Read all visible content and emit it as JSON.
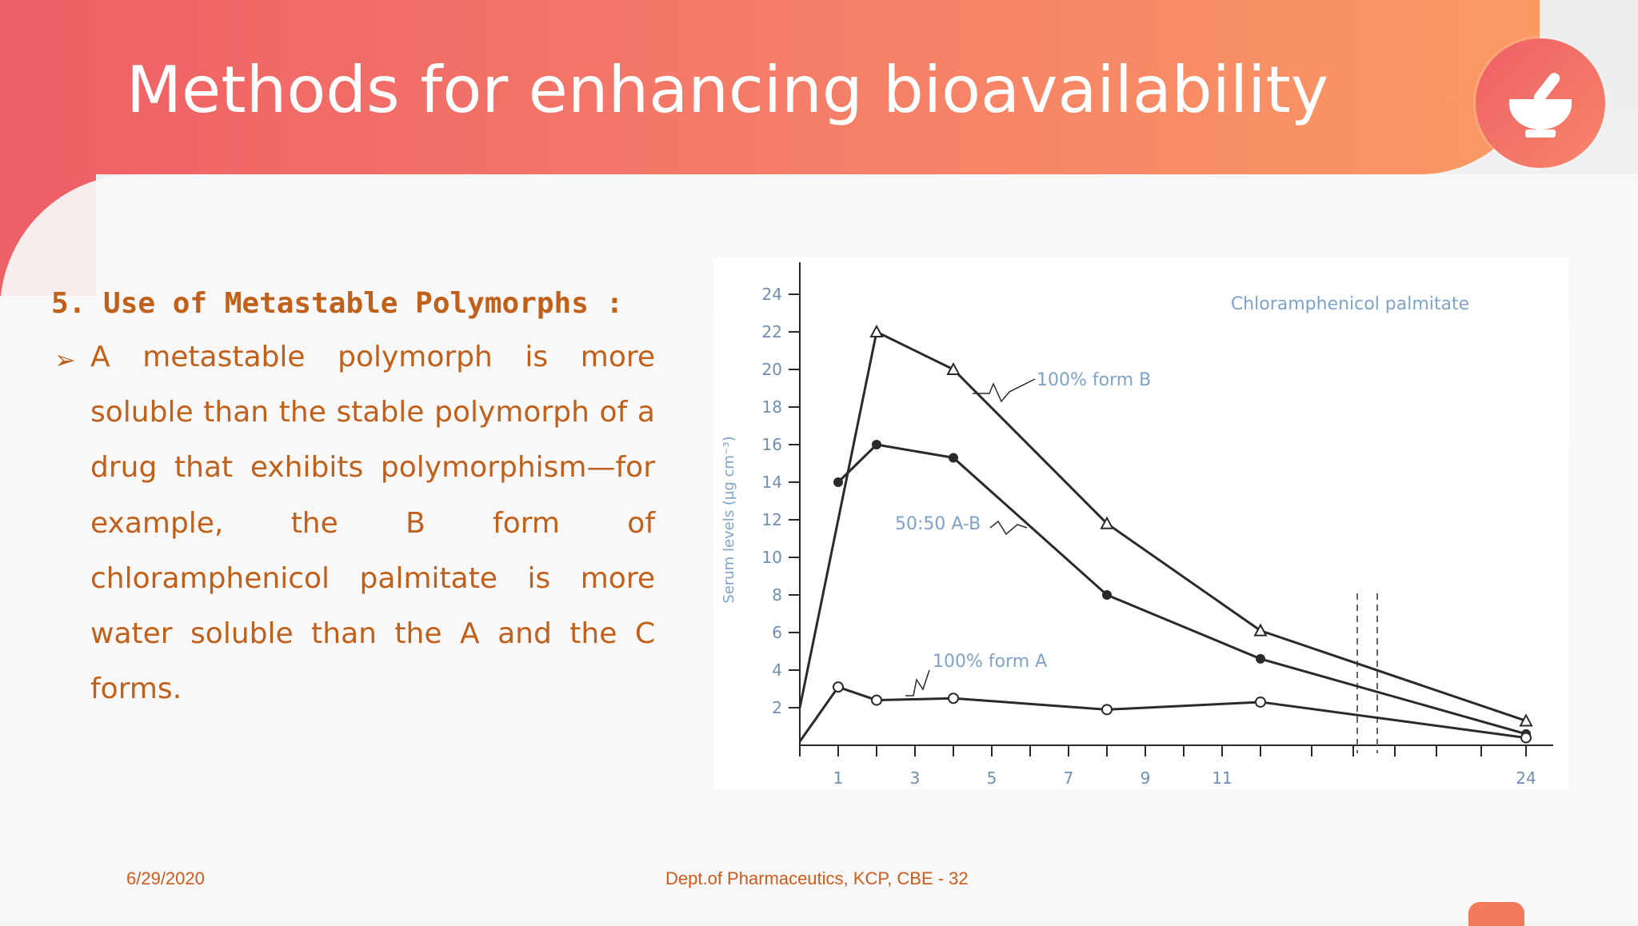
{
  "slide": {
    "title": "Methods for enhancing bioavailability",
    "logo_icon": "mortar-pestle-icon",
    "colors": {
      "header_start": "#ef5f66",
      "header_end": "#fa9a63",
      "text_accent": "#c0601a",
      "chart_line": "#2a2a2a",
      "chart_annotation": "#7fa2c7"
    }
  },
  "content": {
    "heading": "5. Use of Metastable Polymorphs :",
    "bullet_icon": "arrowhead-bullet-icon",
    "bullet_text": "A metastable polymorph is more soluble than the stable polymorph of a drug that exhibits polymorphism—for example, the B form of chloramphenicol palmitate is more water soluble than the A and the C forms."
  },
  "footer": {
    "date": "6/29/2020",
    "dept": "Dept.of Pharmaceutics, KCP, CBE - 32"
  },
  "chart_data": {
    "type": "line",
    "title": "Chloramphenicol palmitate",
    "xlabel": "",
    "ylabel": "Serum levels (µg cm⁻³)",
    "xlim": [
      0,
      24
    ],
    "ylim": [
      0,
      24
    ],
    "x_tick_labels": [
      "1",
      "3",
      "5",
      "7",
      "9",
      "11",
      "24"
    ],
    "y_tick_labels": [
      "2",
      "4",
      "6",
      "8",
      "10",
      "12",
      "14",
      "16",
      "18",
      "20",
      "22",
      "24"
    ],
    "axis_break": true,
    "grid": false,
    "series": [
      {
        "name": "100% form B",
        "marker": "triangle-open",
        "points": [
          [
            0,
            2
          ],
          [
            2,
            22
          ],
          [
            4,
            20
          ],
          [
            8,
            11.8
          ],
          [
            12,
            6.1
          ],
          [
            24,
            1.3
          ]
        ]
      },
      {
        "name": "50:50 A-B",
        "marker": "circle-filled",
        "points": [
          [
            1,
            14
          ],
          [
            2,
            16
          ],
          [
            4,
            15.3
          ],
          [
            8,
            8
          ],
          [
            12,
            4.6
          ],
          [
            24,
            0.6
          ]
        ]
      },
      {
        "name": "100% form A",
        "marker": "circle-open",
        "points": [
          [
            0,
            0.2
          ],
          [
            1,
            3.1
          ],
          [
            2,
            2.4
          ],
          [
            4,
            2.5
          ],
          [
            8,
            1.9
          ],
          [
            12,
            2.3
          ],
          [
            24,
            0.4
          ]
        ]
      }
    ]
  }
}
